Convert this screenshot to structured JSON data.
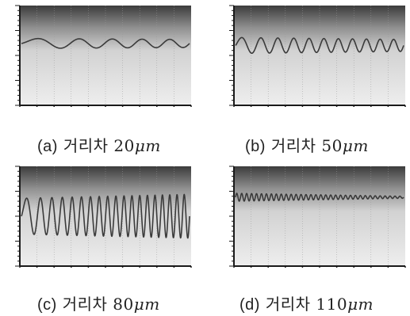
{
  "chart_data": [
    {
      "type": "line",
      "panel": "a",
      "caption": {
        "tag": "(a)",
        "text": "거리차",
        "value": "20",
        "unit": "μm"
      },
      "waveform": {
        "baseline": 0.62,
        "cycles": 5,
        "amplitude_start": 0.05,
        "amplitude_end": 0.04,
        "chirp": 1.3
      },
      "colors": {
        "trace": "#3a3a3a"
      }
    },
    {
      "type": "line",
      "panel": "b",
      "caption": {
        "tag": "(b)",
        "text": "거리차",
        "value": "50",
        "unit": "μm"
      },
      "waveform": {
        "baseline": 0.6,
        "cycles": 11,
        "amplitude_start": 0.08,
        "amplitude_end": 0.06,
        "chirp": 1.15
      },
      "colors": {
        "trace": "#3a3a3a"
      }
    },
    {
      "type": "line",
      "panel": "c",
      "caption": {
        "tag": "(c)",
        "text": "거리차",
        "value": "80",
        "unit": "μm"
      },
      "waveform": {
        "baseline": 0.5,
        "cycles": 19,
        "amplitude_start": 0.18,
        "amplitude_end": 0.22,
        "chirp": 1.25
      },
      "colors": {
        "trace": "#3a3a3a"
      }
    },
    {
      "type": "line",
      "panel": "d",
      "caption": {
        "tag": "(d)",
        "text": "거리차",
        "value": "110",
        "unit": "μm"
      },
      "waveform": {
        "baseline": 0.69,
        "cycles": 34,
        "amplitude_start": 0.04,
        "amplitude_end": 0.01,
        "chirp": 1.0
      },
      "colors": {
        "trace": "#3a3a3a"
      }
    }
  ],
  "colors": {
    "plot_bg_top": "#3c3c3c",
    "plot_bg_bottom": "#eeeeee",
    "axis": "#1a1a1a",
    "grid": "#9a9a9a"
  }
}
